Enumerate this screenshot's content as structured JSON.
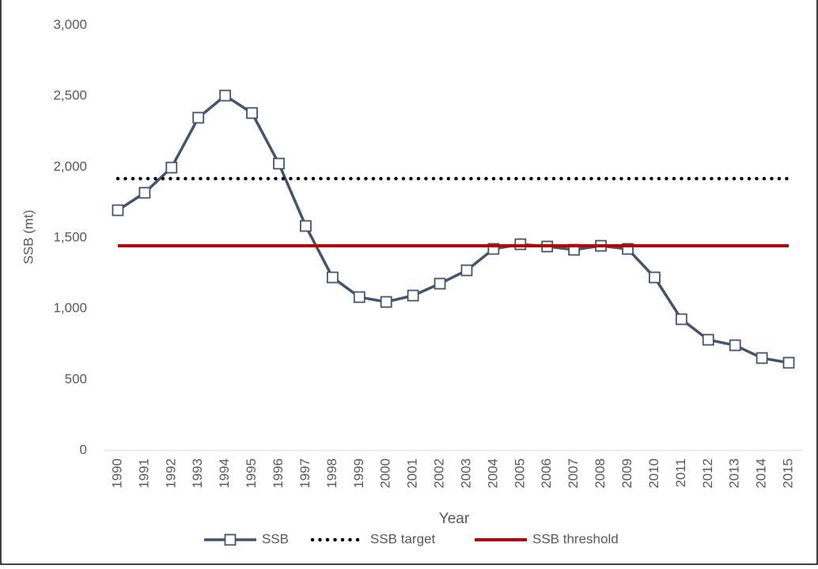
{
  "chart_data": {
    "type": "line",
    "x_label": "Year",
    "y_label": "SSB (mt)",
    "categories": [
      "1990",
      "1991",
      "1992",
      "1993",
      "1994",
      "1995",
      "1996",
      "1997",
      "1998",
      "1999",
      "2000",
      "2001",
      "2002",
      "2003",
      "2004",
      "2005",
      "2006",
      "2007",
      "2008",
      "2009",
      "2010",
      "2011",
      "2012",
      "2013",
      "2014",
      "2015"
    ],
    "series": [
      {
        "name": "SSB",
        "color": "#44546a",
        "style": "solid-markers",
        "values": [
          1695,
          1818,
          1996,
          2348,
          2504,
          2381,
          2024,
          1584,
          1221,
          1082,
          1048,
          1093,
          1177,
          1271,
          1422,
          1455,
          1439,
          1416,
          1444,
          1422,
          1221,
          926,
          781,
          742,
          652,
          619
        ]
      },
      {
        "name": "SSB target",
        "color": "#000000",
        "style": "dotted",
        "values": [
          1918,
          1918,
          1918,
          1918,
          1918,
          1918,
          1918,
          1918,
          1918,
          1918,
          1918,
          1918,
          1918,
          1918,
          1918,
          1918,
          1918,
          1918,
          1918,
          1918,
          1918,
          1918,
          1918,
          1918,
          1918,
          1918
        ]
      },
      {
        "name": "SSB threshold",
        "color": "#c00000",
        "style": "solid",
        "values": [
          1444,
          1444,
          1444,
          1444,
          1444,
          1444,
          1444,
          1444,
          1444,
          1444,
          1444,
          1444,
          1444,
          1444,
          1444,
          1444,
          1444,
          1444,
          1444,
          1444,
          1444,
          1444,
          1444,
          1444,
          1444,
          1444
        ]
      }
    ],
    "ylim": [
      0,
      3000
    ],
    "yticks": [
      0,
      500,
      {
        "value": 1000,
        "label": "1,000"
      },
      {
        "value": 1500,
        "label": "1,500"
      },
      {
        "value": 2000,
        "label": "2,000"
      },
      {
        "value": 2500,
        "label": "2,500"
      },
      {
        "value": 3000,
        "label": "3,000"
      }
    ],
    "grid": false,
    "legend": "bottom"
  }
}
